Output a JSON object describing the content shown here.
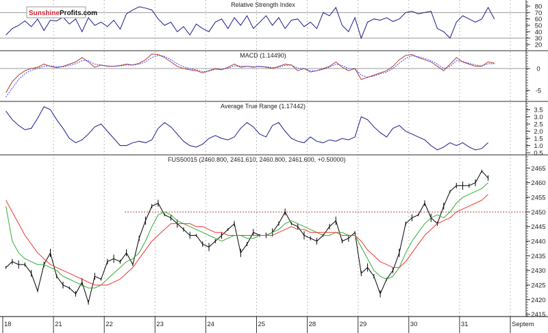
{
  "logo": {
    "part1": "Sunshine",
    "part2": "Profits.com",
    "color1": "#cc2233"
  },
  "chart_data": [
    {
      "type": "line",
      "title": "Relative Strength Index",
      "ticks": [
        20,
        30,
        40,
        50,
        60,
        70,
        80
      ],
      "ylim": [
        10,
        88
      ],
      "reference_lines": [
        30,
        70
      ],
      "series": [
        {
          "color": "#1a1a8c",
          "by_day": {
            "18": [
              35,
              45,
              50,
              57,
              48,
              60,
              42,
              58
            ],
            "21": [
              57,
              63,
              52,
              60,
              40,
              62,
              50,
              55
            ],
            "22": [
              48,
              58,
              44,
              68,
              74,
              79,
              77,
              74
            ],
            "23": [
              60,
              50,
              55,
              40,
              48,
              35,
              52,
              45
            ],
            "24": [
              40,
              55,
              60,
              45,
              62,
              50,
              65,
              45
            ],
            "25": [
              55,
              65,
              50,
              62,
              45,
              58,
              60,
              48
            ],
            "28": [
              55,
              45,
              70,
              65,
              78,
              50,
              40,
              62
            ],
            "29": [
              30,
              55,
              60,
              58,
              62,
              56,
              60,
              70
            ],
            "30": [
              72,
              68,
              70,
              72,
              45,
              40,
              30,
              55
            ],
            "31": [
              65,
              60,
              55,
              60,
              78,
              60
            ]
          }
        }
      ]
    },
    {
      "type": "line",
      "title": "MACD (1.14490)",
      "ticks": [
        0,
        -5
      ],
      "ylim": [
        -7.5,
        4.2
      ],
      "reference_lines": [
        0
      ],
      "series": [
        {
          "color": "#b03a2e",
          "style": "solid",
          "by_day": {
            "18": [
              -5.5,
              -3,
              -1.5,
              -0.5,
              0,
              0.3,
              1.0,
              0.5
            ],
            "21": [
              0.2,
              0.5,
              1.0,
              1.5,
              2.5,
              1.5,
              0.3,
              0.8
            ],
            "22": [
              0.5,
              0.5,
              0.7,
              1.0,
              0.8,
              1.2,
              2.0,
              3.3
            ],
            "23": [
              3.2,
              2.5,
              1.5,
              0.5,
              0,
              -0.3,
              -0.5,
              -1.0
            ],
            "24": [
              -0.5,
              0,
              -0.3,
              0.3,
              1.0,
              0.3,
              0.5,
              0.3
            ],
            "25": [
              0.5,
              0.3,
              0,
              0.5,
              1.0,
              0.8,
              -0.5,
              0
            ],
            "28": [
              -0.8,
              -0.5,
              0,
              0.5,
              1.5,
              0.3,
              -0.5,
              0
            ],
            "29": [
              -2.5,
              -2,
              -1.5,
              -1,
              -0.5,
              0.5,
              2.0,
              3.0
            ],
            "30": [
              3.2,
              2.5,
              2.0,
              1.5,
              0.5,
              -0.5,
              1.0,
              2.5
            ],
            "31": [
              1.5,
              1.0,
              0.5,
              0.5,
              1.5,
              1.2
            ]
          }
        },
        {
          "color": "#3344ee",
          "style": "dotted",
          "by_day": {
            "18": [
              -6.5,
              -4.5,
              -2.5,
              -1.2,
              -0.4,
              0,
              0.5,
              0.6
            ],
            "21": [
              0.4,
              0.4,
              0.7,
              1.1,
              1.8,
              1.8,
              1.0,
              0.8
            ],
            "22": [
              0.6,
              0.5,
              0.6,
              0.8,
              0.8,
              1.0,
              1.5,
              2.5
            ],
            "23": [
              3.0,
              2.8,
              2.0,
              1.1,
              0.4,
              0,
              -0.3,
              -0.7
            ],
            "24": [
              -0.6,
              -0.2,
              -0.2,
              0.1,
              0.6,
              0.5,
              0.5,
              0.4
            ],
            "25": [
              0.4,
              0.4,
              0.2,
              0.3,
              0.7,
              0.8,
              0.1,
              0
            ],
            "28": [
              -0.5,
              -0.5,
              -0.2,
              0.3,
              1.0,
              0.7,
              0,
              0
            ],
            "29": [
              -1.5,
              -2.0,
              -1.7,
              -1.2,
              -0.8,
              0,
              1.2,
              2.3
            ],
            "30": [
              2.9,
              2.7,
              2.3,
              1.8,
              1.0,
              0,
              0.5,
              1.8
            ],
            "31": [
              1.6,
              1.2,
              0.8,
              0.6,
              1.1,
              1.1
            ]
          }
        }
      ]
    },
    {
      "type": "line",
      "title": "Average True Range (1.17442)",
      "ticks": [
        0.5,
        1.0,
        1.5,
        2.0,
        2.5,
        3.0,
        3.5
      ],
      "ylim": [
        0.35,
        4.1
      ],
      "series": [
        {
          "color": "#1a1a8c",
          "by_day": {
            "18": [
              3.4,
              2.8,
              2.4,
              2.1,
              2.2,
              2.9,
              3.7,
              3.5
            ],
            "21": [
              2.8,
              2.2,
              1.5,
              1.2,
              1.4,
              1.8,
              2.3,
              2.5
            ],
            "22": [
              2.0,
              1.5,
              1.0,
              1.0,
              1.2,
              1.3,
              1.2,
              1.4
            ],
            "23": [
              2.2,
              2.6,
              2.3,
              1.8,
              1.3,
              1.0,
              0.9,
              1.1
            ],
            "24": [
              1.5,
              1.7,
              1.5,
              1.4,
              1.6,
              2.2,
              2.6,
              2.3
            ],
            "25": [
              1.8,
              1.6,
              2.4,
              2.6,
              2.0,
              1.5,
              1.3,
              1.2
            ],
            "28": [
              1.6,
              1.3,
              1.2,
              1.4,
              1.3,
              1.5,
              1.4,
              1.6
            ],
            "29": [
              3.0,
              2.8,
              2.3,
              1.9,
              1.6,
              2.2,
              2.4,
              2.0
            ],
            "30": [
              1.8,
              1.6,
              1.4,
              1.0,
              0.7,
              0.9,
              1.2,
              1.0
            ],
            "31": [
              1.2,
              0.9,
              0.7,
              0.8,
              1.2
            ]
          }
        }
      ]
    },
    {
      "type": "line",
      "title": "FUS50015 (2460.800, 2461.610, 2460.800, 2461.600, +0.50000)",
      "ticks": [
        2415,
        2420,
        2425,
        2430,
        2435,
        2440,
        2445,
        2450,
        2455,
        2460,
        2465
      ],
      "ylim": [
        2414,
        2469.5
      ],
      "reference_lines": [
        {
          "value": 2450,
          "style": "dashed",
          "color": "#a04040",
          "from_day": "22"
        }
      ],
      "series": [
        {
          "color": "#000000",
          "by_day": {
            "18": [
              2431,
              2433,
              2432,
              2432,
              2429,
              2423,
              2432,
              2436
            ],
            "21": [
              2428,
              2425,
              2424,
              2422,
              2426,
              2419,
              2428,
              2427
            ],
            "22": [
              2433,
              2434,
              2433,
              2436,
              2432,
              2441,
              2447,
              2452
            ],
            "23": [
              2453,
              2449,
              2448,
              2446,
              2444,
              2442,
              2442,
              2439
            ],
            "24": [
              2438,
              2440,
              2442,
              2444,
              2446,
              2436,
              2439,
              2443
            ],
            "25": [
              2442,
              2442,
              2443,
              2446,
              2450,
              2446,
              2445,
              2442
            ],
            "28": [
              2441,
              2440,
              2442,
              2445,
              2447,
              2440,
              2441,
              2443
            ],
            "29": [
              2429,
              2431,
              2428,
              2422,
              2427,
              2430,
              2436,
              2446
            ],
            "30": [
              2448,
              2449,
              2453,
              2448,
              2446,
              2452,
              2457,
              2459
            ],
            "31": [
              2459,
              2459,
              2460,
              2464,
              2461.6
            ]
          }
        },
        {
          "color": "#33aa33",
          "by_day": {
            "18": [
              2452,
              2440,
              2436,
              2434,
              2433,
              2432,
              2432,
              2431
            ],
            "21": [
              2430,
              2428,
              2427,
              2426,
              2425,
              2424,
              2424,
              2425
            ],
            "22": [
              2427,
              2429,
              2431,
              2433,
              2434,
              2436,
              2440,
              2445
            ],
            "23": [
              2449,
              2450,
              2449,
              2447,
              2446,
              2445,
              2444,
              2443
            ],
            "24": [
              2442,
              2441,
              2440,
              2441,
              2442,
              2442,
              2441,
              2441
            ],
            "25": [
              2442,
              2442,
              2443,
              2444,
              2446,
              2447,
              2446,
              2445
            ],
            "28": [
              2444,
              2443,
              2442,
              2442,
              2443,
              2443,
              2442,
              2442
            ],
            "29": [
              2438,
              2434,
              2430,
              2428,
              2427,
              2428,
              2431,
              2436
            ],
            "30": [
              2440,
              2443,
              2446,
              2448,
              2449,
              2448,
              2450,
              2453
            ],
            "31": [
              2455,
              2456,
              2457,
              2458,
              2460
            ]
          }
        },
        {
          "color": "#ee3333",
          "by_day": {
            "18": [
              2454,
              2450,
              2446,
              2442,
              2439,
              2436,
              2434,
              2432
            ],
            "21": [
              2431,
              2430,
              2429,
              2428,
              2427,
              2426,
              2425,
              2425
            ],
            "22": [
              2425,
              2426,
              2427,
              2429,
              2431,
              2434,
              2437,
              2440
            ],
            "23": [
              2442,
              2444,
              2446,
              2446,
              2446,
              2446,
              2445,
              2445
            ],
            "24": [
              2444,
              2443,
              2443,
              2442,
              2442,
              2442,
              2442,
              2442
            ],
            "25": [
              2442,
              2442,
              2442,
              2443,
              2444,
              2445,
              2444,
              2444
            ],
            "28": [
              2443,
              2443,
              2443,
              2443,
              2443,
              2442,
              2442,
              2442
            ],
            "29": [
              2440,
              2437,
              2435,
              2433,
              2432,
              2431,
              2431,
              2433
            ],
            "30": [
              2436,
              2439,
              2442,
              2444,
              2446,
              2447,
              2448,
              2450
            ],
            "31": [
              2451,
              2452,
              2453,
              2454,
              2456
            ]
          }
        }
      ]
    }
  ],
  "x_axis": {
    "labels": [
      "18",
      "21",
      "22",
      "23",
      "24",
      "25",
      "28",
      "29",
      "30",
      "31",
      "Septem"
    ]
  }
}
